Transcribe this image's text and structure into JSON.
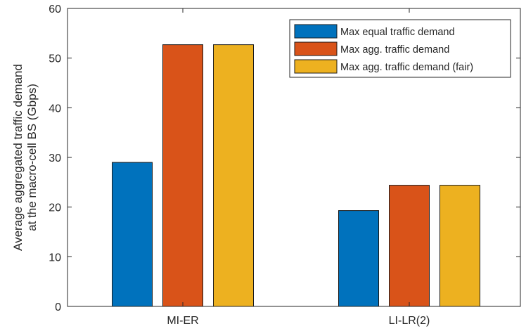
{
  "chart_data": {
    "type": "bar",
    "categories": [
      "MI-ER",
      "LI-LR(2)"
    ],
    "series": [
      {
        "name": "Max equal traffic demand",
        "color": "#0072BD",
        "values": [
          29.0,
          19.3
        ]
      },
      {
        "name": "Max agg. traffic demand",
        "color": "#D95319",
        "values": [
          52.7,
          24.4
        ]
      },
      {
        "name": "Max agg. traffic demand (fair)",
        "color": "#EDB120",
        "values": [
          52.7,
          24.4
        ]
      }
    ],
    "title": "",
    "xlabel": "",
    "ylabel": [
      "Average aggregated traffic demand",
      "at the macro-cell BS (Gbps)"
    ],
    "ylim": [
      0,
      60
    ],
    "yticks": [
      0,
      10,
      20,
      30,
      40,
      50,
      60
    ],
    "grid": false,
    "legend_position": "top-right"
  }
}
